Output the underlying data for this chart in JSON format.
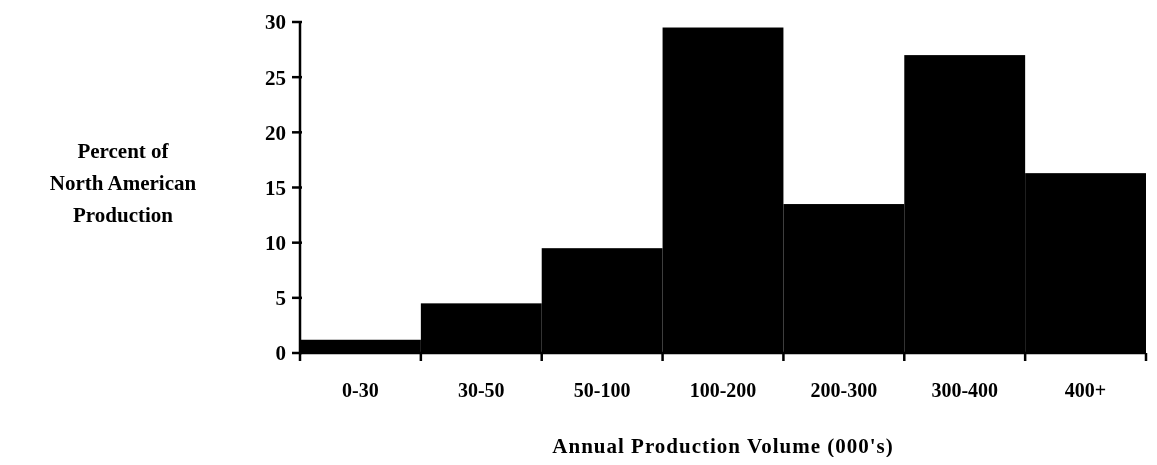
{
  "chart_data": {
    "type": "bar",
    "xlabel": "Annual Production Volume (000's)",
    "ylabel": "Percent of North American Production",
    "categories": [
      "0-30",
      "30-50",
      "50-100",
      "100-200",
      "200-300",
      "300-400",
      "400+"
    ],
    "values": [
      1.2,
      4.5,
      9.5,
      29.5,
      13.5,
      27,
      16.3
    ],
    "color": "#000000",
    "ylim": [
      0,
      30
    ],
    "yticks": [
      0,
      5,
      10,
      15,
      20,
      25,
      30
    ],
    "grid": false
  }
}
